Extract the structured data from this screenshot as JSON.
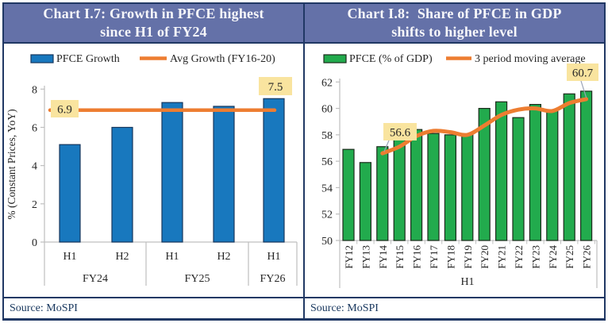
{
  "panels": [
    {
      "title_line1": "Chart I.7: Growth in PFCE highest",
      "title_line2": "since H1 of FY24",
      "source": "Source: MoSPI"
    },
    {
      "title_line1": "Chart I.8:  Share of PFCE in GDP",
      "title_line2": "shifts to higher level",
      "source": "Source: MoSPI"
    }
  ],
  "colors": {
    "frame_border": "#203864",
    "header_bg": "#6471A8",
    "header_text": "#F7F7FA",
    "bar_blue": "#1878BE",
    "bar_blue_outline": "#17375E",
    "bar_green": "#22AB4D",
    "bar_green_outline": "#1C2B1C",
    "line_orange": "#ED7D31",
    "annotation_bg": "#F9E49F",
    "axis_gray": "#BFBFBF",
    "source_text": "#17365D"
  },
  "chart_data": [
    {
      "type": "bar",
      "title": "Chart I.7: Growth in PFCE highest since H1 of FY24",
      "categories": [
        "H1",
        "H2",
        "H1",
        "H2",
        "H1"
      ],
      "category_groups": [
        {
          "label": "FY24",
          "count": 2
        },
        {
          "label": "FY25",
          "count": 2
        },
        {
          "label": "FY26",
          "count": 1
        }
      ],
      "series": [
        {
          "name": "PFCE Growth",
          "type": "bar",
          "color": "#1878BE",
          "values": [
            5.1,
            6.0,
            7.3,
            7.1,
            7.5
          ]
        },
        {
          "name": "Avg Growth (FY16-20)",
          "type": "line",
          "color": "#ED7D31",
          "values": [
            6.9,
            6.9,
            6.9,
            6.9,
            6.9
          ]
        }
      ],
      "xlabel": "",
      "ylabel": "% (Constant Prices, YoY)",
      "yticks": [
        0,
        2,
        4,
        6,
        8
      ],
      "ylim": [
        0,
        8
      ],
      "grid": false,
      "legend_position": "top",
      "annotations": [
        {
          "text": "6.9",
          "refers_to": "average line level"
        },
        {
          "text": "7.5",
          "refers_to": "H1 FY26 bar"
        }
      ],
      "source": "Source: MoSPI"
    },
    {
      "type": "bar",
      "title": "Chart I.8: Share of PFCE in GDP shifts to higher level",
      "categories": [
        "FY12",
        "FY13",
        "FY14",
        "FY15",
        "FY16",
        "FY17",
        "FY18",
        "FY19",
        "FY20",
        "FY21",
        "FY22",
        "FY23",
        "FY24",
        "FY25",
        "FY26"
      ],
      "series": [
        {
          "name": "PFCE (% of GDP)",
          "type": "bar",
          "color": "#22AB4D",
          "values": [
            56.9,
            55.9,
            57.1,
            58.3,
            58.4,
            58.1,
            58.0,
            58.0,
            60.0,
            60.5,
            59.3,
            60.3,
            59.9,
            61.1,
            61.3
          ]
        },
        {
          "name": "3 period moving average",
          "type": "line",
          "color": "#ED7D31",
          "values": [
            null,
            null,
            56.6,
            57.1,
            57.9,
            58.3,
            58.2,
            58.0,
            58.7,
            59.5,
            59.9,
            60.0,
            59.8,
            60.4,
            60.7
          ]
        }
      ],
      "xlabel": "H1",
      "ylabel": "",
      "yticks": [
        50,
        52,
        54,
        56,
        58,
        60,
        62
      ],
      "ylim": [
        50,
        62
      ],
      "grid": false,
      "legend_position": "top",
      "annotations": [
        {
          "text": "56.6",
          "refers_to": "moving average at FY14"
        },
        {
          "text": "60.7",
          "refers_to": "moving average at FY26"
        }
      ],
      "source": "Source: MoSPI"
    }
  ]
}
